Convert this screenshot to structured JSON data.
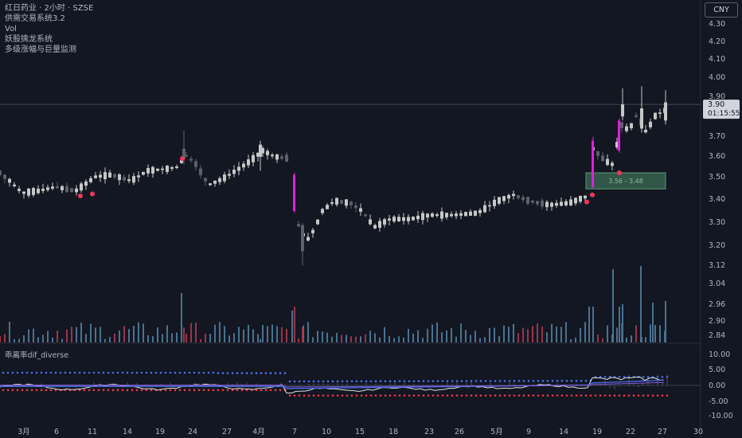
{
  "header": {
    "symbol_line": "红日药业 · 2小时 · SZSE",
    "indicators": [
      "供需交易系统3.2",
      "Vol",
      "妖股擒龙系统",
      "多级涨幅与巨量监测"
    ]
  },
  "currency_button": "CNY",
  "price_tag": {
    "price": "3.90",
    "countdown": "01:15:55"
  },
  "zone_label": "3.56 - 3.48",
  "indicator_title": "乖离率dif_diverse",
  "colors": {
    "background": "#131722",
    "up": "#c7c7c7",
    "down": "#5d606b",
    "magenta": "#e020e0",
    "signal": "#f23659",
    "vol_up": "#4a7290",
    "vol_down": "#9a3548",
    "dots_blue": "#4b6ee8",
    "dots_red": "#f23645",
    "zone": "#4c8c68"
  },
  "chart_data": {
    "type": "candlestick",
    "price_axis": {
      "min": 2.8,
      "max": 4.4,
      "ticks": [
        "4.30",
        "4.20",
        "4.10",
        "4.00",
        "3.90",
        "3.80",
        "3.70",
        "3.60",
        "3.50",
        "3.40",
        "3.30",
        "3.20",
        "3.12",
        "3.04",
        "2.96",
        "2.90",
        "2.84"
      ]
    },
    "time_axis": {
      "labels": [
        "3月",
        "6",
        "11",
        "14",
        "19",
        "24",
        "27",
        "4月",
        "7",
        "10",
        "15",
        "18",
        "23",
        "26",
        "5月",
        "9",
        "14",
        "19",
        "22",
        "27",
        "30"
      ]
    },
    "indicator_axis": {
      "min": -12,
      "max": 12,
      "ticks": [
        "10.00",
        "5.00",
        "0.00",
        "-5.00",
        "-10.00"
      ]
    },
    "current_price": 3.9,
    "zone": {
      "top": 3.56,
      "bottom": 3.48
    },
    "segments": [
      {
        "name": "late-feb-to-apr",
        "start_price": 3.55,
        "points": [
          [
            0,
            3.56
          ],
          [
            12,
            3.52
          ],
          [
            28,
            3.46
          ],
          [
            48,
            3.47
          ],
          [
            70,
            3.49
          ],
          [
            95,
            3.47
          ],
          [
            120,
            3.54
          ],
          [
            140,
            3.55
          ],
          [
            165,
            3.52
          ],
          [
            185,
            3.57
          ],
          [
            210,
            3.58
          ],
          [
            225,
            3.59
          ],
          [
            232,
            3.65
          ],
          [
            245,
            3.61
          ],
          [
            262,
            3.5
          ],
          [
            280,
            3.53
          ],
          [
            300,
            3.58
          ],
          [
            315,
            3.62
          ],
          [
            330,
            3.67
          ],
          [
            345,
            3.64
          ],
          [
            365,
            3.63
          ]
        ]
      },
      {
        "name": "apr-gap-down",
        "points": [
          [
            375,
            3.3
          ],
          [
            385,
            3.22
          ],
          [
            395,
            3.28
          ],
          [
            405,
            3.37
          ],
          [
            420,
            3.42
          ],
          [
            440,
            3.41
          ],
          [
            455,
            3.37
          ],
          [
            470,
            3.29
          ],
          [
            490,
            3.33
          ],
          [
            515,
            3.33
          ],
          [
            540,
            3.35
          ],
          [
            570,
            3.35
          ],
          [
            600,
            3.36
          ],
          [
            625,
            3.42
          ],
          [
            645,
            3.45
          ],
          [
            665,
            3.42
          ],
          [
            690,
            3.4
          ],
          [
            715,
            3.41
          ],
          [
            735,
            3.44
          ]
        ]
      },
      {
        "name": "may-surge",
        "points": [
          [
            745,
            3.68
          ],
          [
            760,
            3.62
          ],
          [
            770,
            3.6
          ],
          [
            780,
            3.8
          ],
          [
            790,
            3.77
          ],
          [
            800,
            3.85
          ],
          [
            812,
            3.76
          ],
          [
            822,
            3.84
          ],
          [
            835,
            3.87
          ]
        ]
      }
    ],
    "signals": {
      "count": 6
    }
  }
}
